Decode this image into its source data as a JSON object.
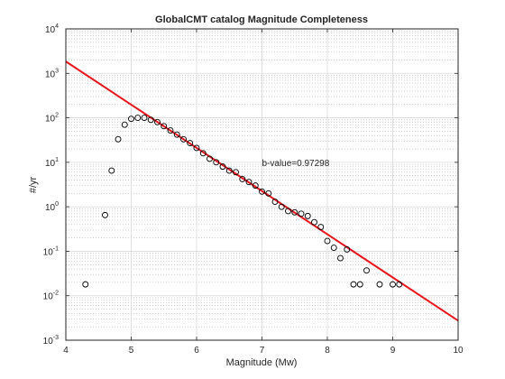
{
  "chart_data": {
    "type": "scatter",
    "title": "GlobalCMT catalog Magnitude Completeness",
    "xlabel": "Magnitude (Mw)",
    "ylabel": "#/yr",
    "xlim": [
      4,
      10
    ],
    "ylim": [
      0.001,
      10000
    ],
    "yscale": "log",
    "grid": "on (major and minor)",
    "x_ticks": [
      4,
      5,
      6,
      7,
      8,
      9,
      10
    ],
    "y_tick_labels": [
      {
        "base": "10",
        "exp": "-3",
        "value": 0.001
      },
      {
        "base": "10",
        "exp": "-2",
        "value": 0.01
      },
      {
        "base": "10",
        "exp": "-1",
        "value": 0.1
      },
      {
        "base": "10",
        "exp": "0",
        "value": 1
      },
      {
        "base": "10",
        "exp": "1",
        "value": 10
      },
      {
        "base": "10",
        "exp": "2",
        "value": 100
      },
      {
        "base": "10",
        "exp": "3",
        "value": 1000
      },
      {
        "base": "10",
        "exp": "4",
        "value": 10000
      }
    ],
    "annotation": {
      "text": "b-value=0.97298",
      "x": 7.0,
      "y": 10
    },
    "series": [
      {
        "marker": "open-circle",
        "color": "#000000",
        "points": [
          [
            4.3,
            0.018
          ],
          [
            4.6,
            0.65
          ],
          [
            4.7,
            6.5
          ],
          [
            4.8,
            33
          ],
          [
            4.9,
            70
          ],
          [
            5.0,
            95
          ],
          [
            5.1,
            100
          ],
          [
            5.2,
            100
          ],
          [
            5.3,
            90
          ],
          [
            5.4,
            80
          ],
          [
            5.5,
            65
          ],
          [
            5.6,
            52
          ],
          [
            5.7,
            42
          ],
          [
            5.8,
            33
          ],
          [
            5.9,
            27
          ],
          [
            6.0,
            21
          ],
          [
            6.1,
            16
          ],
          [
            6.2,
            12
          ],
          [
            6.3,
            10
          ],
          [
            6.4,
            8
          ],
          [
            6.5,
            6.5
          ],
          [
            6.6,
            6.0
          ],
          [
            6.7,
            4.2
          ],
          [
            6.8,
            3.6
          ],
          [
            6.9,
            3.0
          ],
          [
            7.0,
            2.2
          ],
          [
            7.1,
            2.0
          ],
          [
            7.2,
            1.3
          ],
          [
            7.3,
            1.0
          ],
          [
            7.4,
            0.8
          ],
          [
            7.5,
            0.75
          ],
          [
            7.6,
            0.7
          ],
          [
            7.7,
            0.62
          ],
          [
            7.8,
            0.45
          ],
          [
            7.9,
            0.35
          ],
          [
            8.0,
            0.17
          ],
          [
            8.1,
            0.12
          ],
          [
            8.2,
            0.07
          ],
          [
            8.3,
            0.11
          ],
          [
            8.4,
            0.018
          ],
          [
            8.5,
            0.018
          ],
          [
            8.6,
            0.037
          ],
          [
            8.8,
            0.018
          ],
          [
            9.0,
            0.018
          ],
          [
            9.1,
            0.018
          ]
        ]
      },
      {
        "type": "line",
        "style": "fit",
        "color": "#e8161b",
        "points": [
          [
            4.0,
            1850
          ],
          [
            10.0,
            0.00275
          ]
        ]
      }
    ]
  }
}
